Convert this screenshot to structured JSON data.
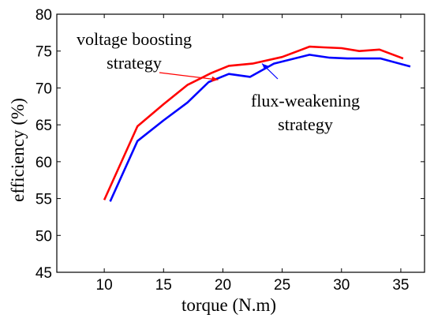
{
  "chart_data": {
    "type": "line",
    "xlabel": "torque (N.m)",
    "ylabel": "efficiency (%)",
    "xlim": [
      6,
      37
    ],
    "ylim": [
      45,
      80
    ],
    "xticks": [
      10,
      15,
      20,
      25,
      30,
      35
    ],
    "yticks": [
      45,
      50,
      55,
      60,
      65,
      70,
      75,
      80
    ],
    "grid": false,
    "series": [
      {
        "color": "#ff0000",
        "x": [
          10.0,
          12.8,
          15.0,
          17.0,
          19.0,
          20.5,
          22.5,
          25.0,
          27.3,
          28.5,
          30.0,
          31.5,
          33.2,
          35.2
        ],
        "y": [
          54.8,
          64.8,
          67.8,
          70.4,
          72.0,
          73.0,
          73.3,
          74.2,
          75.6,
          75.5,
          75.4,
          75.0,
          75.2,
          74.0
        ]
      },
      {
        "color": "#0000ff",
        "x": [
          10.5,
          12.8,
          15.0,
          17.0,
          18.8,
          20.5,
          22.3,
          24.3,
          27.3,
          29.0,
          30.5,
          31.8,
          33.3,
          35.8
        ],
        "y": [
          54.6,
          62.8,
          65.6,
          68.0,
          70.8,
          71.9,
          71.5,
          73.3,
          74.5,
          74.1,
          74.0,
          74.0,
          74.0,
          72.9
        ]
      }
    ],
    "annotations": [
      {
        "id": "voltage",
        "lines": [
          "voltage boosting",
          "strategy"
        ],
        "color": "#ff0000",
        "arrow_to": [
          19.6,
          71.1
        ]
      },
      {
        "id": "flux",
        "lines": [
          "flux-weakening",
          "strategy"
        ],
        "color": "#0000ff",
        "arrow_to": [
          23.3,
          73.3
        ]
      }
    ]
  }
}
